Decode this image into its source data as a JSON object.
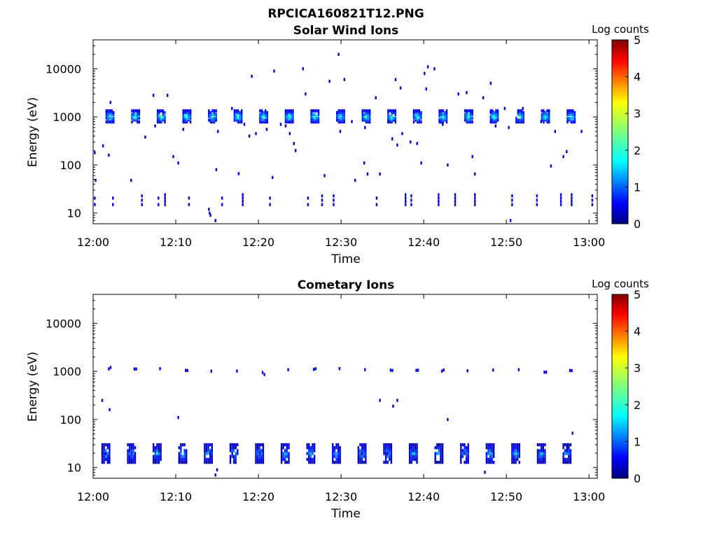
{
  "figure_title": "RPCICA160821T12.PNG",
  "chart_data": [
    {
      "type": "heatmap",
      "title": "Solar Wind Ions",
      "xlabel": "Time",
      "ylabel": "Energy (eV)",
      "x_range": [
        "12:00",
        "13:01"
      ],
      "x_ticks": [
        "12:00",
        "12:10",
        "12:20",
        "12:30",
        "12:40",
        "12:50",
        "13:00"
      ],
      "y_scale": "log",
      "ylim": [
        6,
        40000
      ],
      "y_ticks": [
        "10",
        "100",
        "1000",
        "10000"
      ],
      "colorbar": {
        "label": "Log counts",
        "range": [
          0,
          5
        ],
        "ticks": [
          "0",
          "1",
          "2",
          "3",
          "4",
          "5"
        ],
        "colormap": "jet"
      },
      "sweeps_every_min": 3.1,
      "main_band": {
        "energy_eV": [
          750,
          1400
        ],
        "sweep_start_min": 1.5,
        "peak_log_counts": 2.5,
        "sweep_count": 19
      },
      "low_band": {
        "energy_eV": [
          15,
          28
        ],
        "log_counts": 0.5,
        "times_min": [
          0.1,
          2.3,
          5.8,
          7.8,
          8.6,
          11.5,
          15.5,
          18.0,
          21.3,
          25.9,
          27.6,
          29.0,
          34.2,
          37.7,
          38.4,
          41.7,
          43.7,
          46.1,
          50.6,
          53.6,
          56.5,
          57.8,
          60.3
        ]
      },
      "scatter_points": [
        {
          "t": 0.1,
          "e": 180
        },
        {
          "t": 0.2,
          "e": 48
        },
        {
          "t": 1.1,
          "e": 250
        },
        {
          "t": 1.8,
          "e": 160
        },
        {
          "t": 2.0,
          "e": 2000
        },
        {
          "t": 4.5,
          "e": 48
        },
        {
          "t": 6.2,
          "e": 380
        },
        {
          "t": 7.2,
          "e": 2800
        },
        {
          "t": 7.4,
          "e": 650
        },
        {
          "t": 8.9,
          "e": 2800
        },
        {
          "t": 9.6,
          "e": 150
        },
        {
          "t": 10.2,
          "e": 110
        },
        {
          "t": 10.8,
          "e": 550
        },
        {
          "t": 14.8,
          "e": 80
        },
        {
          "t": 15.0,
          "e": 500
        },
        {
          "t": 16.7,
          "e": 1500
        },
        {
          "t": 17.5,
          "e": 66
        },
        {
          "t": 18.2,
          "e": 700
        },
        {
          "t": 18.8,
          "e": 400
        },
        {
          "t": 19.1,
          "e": 7000
        },
        {
          "t": 19.6,
          "e": 450
        },
        {
          "t": 20.9,
          "e": 550
        },
        {
          "t": 21.6,
          "e": 55
        },
        {
          "t": 21.8,
          "e": 9000
        },
        {
          "t": 22.6,
          "e": 700
        },
        {
          "t": 23.2,
          "e": 650
        },
        {
          "t": 23.7,
          "e": 450
        },
        {
          "t": 24.2,
          "e": 280
        },
        {
          "t": 24.4,
          "e": 200
        },
        {
          "t": 25.3,
          "e": 10000
        },
        {
          "t": 25.6,
          "e": 3000
        },
        {
          "t": 27.9,
          "e": 60
        },
        {
          "t": 28.5,
          "e": 5500
        },
        {
          "t": 29.6,
          "e": 20000
        },
        {
          "t": 29.8,
          "e": 500
        },
        {
          "t": 30.3,
          "e": 6000
        },
        {
          "t": 31.2,
          "e": 800
        },
        {
          "t": 31.6,
          "e": 48
        },
        {
          "t": 32.7,
          "e": 110
        },
        {
          "t": 32.8,
          "e": 600
        },
        {
          "t": 33.1,
          "e": 65
        },
        {
          "t": 34.1,
          "e": 2500
        },
        {
          "t": 34.6,
          "e": 65
        },
        {
          "t": 35.6,
          "e": 800
        },
        {
          "t": 36.1,
          "e": 350
        },
        {
          "t": 36.5,
          "e": 6000
        },
        {
          "t": 36.7,
          "e": 260
        },
        {
          "t": 37.1,
          "e": 4000
        },
        {
          "t": 37.3,
          "e": 450
        },
        {
          "t": 38.3,
          "e": 300
        },
        {
          "t": 39.1,
          "e": 280
        },
        {
          "t": 39.6,
          "e": 110
        },
        {
          "t": 40.0,
          "e": 8000
        },
        {
          "t": 40.2,
          "e": 3800
        },
        {
          "t": 40.4,
          "e": 11000
        },
        {
          "t": 41.2,
          "e": 10000
        },
        {
          "t": 42.2,
          "e": 700
        },
        {
          "t": 42.8,
          "e": 100
        },
        {
          "t": 44.1,
          "e": 3000
        },
        {
          "t": 45.1,
          "e": 3200
        },
        {
          "t": 45.8,
          "e": 150
        },
        {
          "t": 46.1,
          "e": 65
        },
        {
          "t": 47.1,
          "e": 2500
        },
        {
          "t": 48.0,
          "e": 5000
        },
        {
          "t": 48.6,
          "e": 650
        },
        {
          "t": 49.7,
          "e": 1500
        },
        {
          "t": 50.2,
          "e": 600
        },
        {
          "t": 51.9,
          "e": 1500
        },
        {
          "t": 54.1,
          "e": 800
        },
        {
          "t": 55.3,
          "e": 95
        },
        {
          "t": 55.8,
          "e": 500
        },
        {
          "t": 56.8,
          "e": 150
        },
        {
          "t": 57.2,
          "e": 190
        },
        {
          "t": 59.0,
          "e": 500
        }
      ],
      "extra_points": [
        {
          "t": 13.9,
          "e": 12
        },
        {
          "t": 14.0,
          "e": 10
        },
        {
          "t": 14.1,
          "e": 9
        },
        {
          "t": 14.7,
          "e": 7
        },
        {
          "t": 50.4,
          "e": 7
        }
      ]
    },
    {
      "type": "heatmap",
      "title": "Cometary Ions",
      "xlabel": "Time",
      "ylabel": "Energy (eV)",
      "x_range": [
        "12:00",
        "13:01"
      ],
      "x_ticks": [
        "12:00",
        "12:10",
        "12:20",
        "12:30",
        "12:40",
        "12:50",
        "13:00"
      ],
      "y_scale": "log",
      "ylim": [
        6,
        40000
      ],
      "y_ticks": [
        "10",
        "100",
        "1000",
        "10000"
      ],
      "colorbar": {
        "label": "Log counts",
        "range": [
          0,
          5
        ],
        "ticks": [
          "0",
          "1",
          "2",
          "3",
          "4",
          "5"
        ],
        "colormap": "jet"
      },
      "sweeps_every_min": 3.1,
      "main_band": {
        "energy_eV": [
          12,
          32
        ],
        "sweep_start_min": 1.0,
        "peak_log_counts": 1.8,
        "sweep_count": 19
      },
      "upper_band": {
        "energy_eV": [
          950,
          1150
        ],
        "log_counts": 0.6,
        "sweep_start_min": 1.8,
        "sweep_count": 19
      },
      "scatter_points": [
        {
          "t": 1.0,
          "e": 250
        },
        {
          "t": 1.9,
          "e": 160
        },
        {
          "t": 10.2,
          "e": 110
        },
        {
          "t": 34.6,
          "e": 250
        },
        {
          "t": 36.2,
          "e": 190
        },
        {
          "t": 36.7,
          "e": 250
        },
        {
          "t": 42.8,
          "e": 100
        },
        {
          "t": 57.9,
          "e": 52
        }
      ],
      "extra_points": [
        {
          "t": 14.7,
          "e": 7
        },
        {
          "t": 14.9,
          "e": 9
        },
        {
          "t": 47.3,
          "e": 8
        }
      ]
    }
  ]
}
